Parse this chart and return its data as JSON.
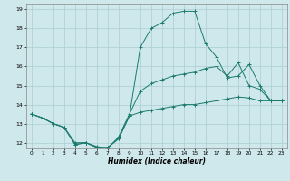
{
  "xlabel": "Humidex (Indice chaleur)",
  "bg_color": "#cfe8ec",
  "grid_color": "#aacdd4",
  "line_color": "#1a7a6e",
  "xlim": [
    -0.5,
    23.5
  ],
  "ylim": [
    11.7,
    19.3
  ],
  "xticks": [
    0,
    1,
    2,
    3,
    4,
    5,
    6,
    7,
    8,
    9,
    10,
    11,
    12,
    13,
    14,
    15,
    16,
    17,
    18,
    19,
    20,
    21,
    22,
    23
  ],
  "yticks": [
    12,
    13,
    14,
    15,
    16,
    17,
    18,
    19
  ],
  "series1_x": [
    0,
    1,
    2,
    3,
    4,
    5,
    6,
    7,
    8,
    9,
    10,
    11,
    12,
    13,
    14,
    15,
    16,
    17,
    18,
    19,
    20,
    21,
    22,
    23
  ],
  "series1_y": [
    13.5,
    13.3,
    13.0,
    12.8,
    11.9,
    12.0,
    11.75,
    11.75,
    12.2,
    13.4,
    13.6,
    13.7,
    13.8,
    13.9,
    14.0,
    14.0,
    14.1,
    14.2,
    14.3,
    14.4,
    14.35,
    14.2,
    14.2,
    14.2
  ],
  "series2_x": [
    0,
    1,
    2,
    3,
    4,
    5,
    6,
    7,
    8,
    9,
    10,
    11,
    12,
    13,
    14,
    15,
    16,
    17,
    18,
    19,
    20,
    21,
    22,
    23
  ],
  "series2_y": [
    13.5,
    13.3,
    13.0,
    12.8,
    12.0,
    12.0,
    11.8,
    11.7,
    12.3,
    13.5,
    14.7,
    15.1,
    15.3,
    15.5,
    15.6,
    15.7,
    15.9,
    16.0,
    15.5,
    16.2,
    15.0,
    14.8,
    14.2,
    14.2
  ],
  "series3_x": [
    0,
    1,
    2,
    3,
    4,
    5,
    6,
    7,
    8,
    9,
    10,
    11,
    12,
    13,
    14,
    15,
    16,
    17,
    18,
    19,
    20,
    21,
    22,
    23
  ],
  "series3_y": [
    13.5,
    13.3,
    13.0,
    12.8,
    11.9,
    12.0,
    11.75,
    11.75,
    12.2,
    13.4,
    17.0,
    18.0,
    18.3,
    18.8,
    18.9,
    18.9,
    17.2,
    16.5,
    15.4,
    15.5,
    16.1,
    15.0,
    14.2,
    14.2
  ]
}
